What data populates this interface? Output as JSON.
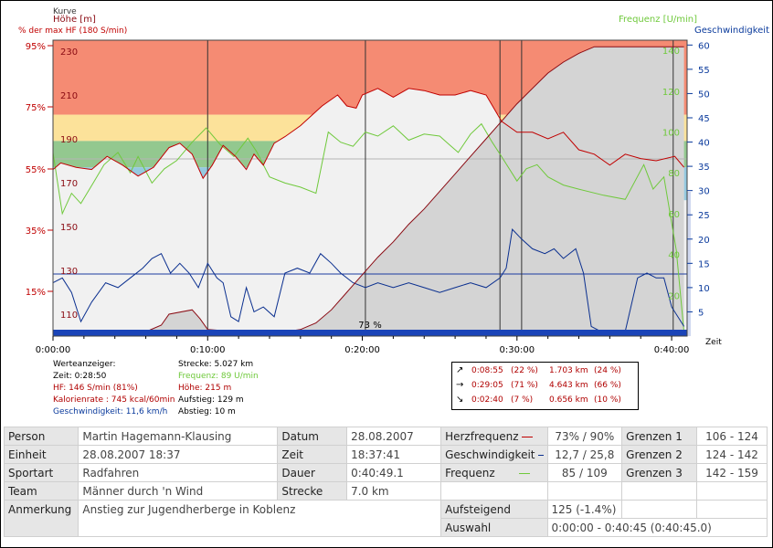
{
  "chart_data": {
    "type": "line",
    "left_axis_title_lines": [
      "Kurve",
      "Höhe [m]",
      "% der max HF (180 S/min)"
    ],
    "right_axis_title_1": "Frequenz [U/min]",
    "right_axis_title_2": "Geschwindigkeit [k",
    "x_axis_label": "Zeit",
    "x_ticks": [
      "0:00:00",
      "0:10:00",
      "0:20:00",
      "0:30:00",
      "0:40:00"
    ],
    "x_range_min": [
      0,
      41
    ],
    "hr_pct_ticks": [
      "95%",
      "75%",
      "55%",
      "35%",
      "15%"
    ],
    "altitude_ticks": [
      230,
      210,
      190,
      170,
      150,
      130,
      110
    ],
    "altitude_range_m": [
      100,
      235
    ],
    "cadence_ticks": [
      140,
      120,
      100,
      80,
      60,
      40,
      20
    ],
    "cadence_range": [
      0,
      145
    ],
    "speed_ticks": [
      60,
      55,
      50,
      45,
      40,
      35,
      30,
      25,
      20,
      15,
      10,
      5
    ],
    "speed_range_kmh": [
      0,
      61
    ],
    "hr_zones": [
      {
        "from": 201,
        "to": 235,
        "color": "#f58b73"
      },
      {
        "from": 189,
        "to": 201,
        "color": "#fce29a"
      },
      {
        "from": 177,
        "to": 189,
        "color": "#93c88f"
      },
      {
        "from": 162,
        "to": 177,
        "color": "#95c9e0"
      }
    ],
    "bottom_bar_label": "73 %",
    "lap_markers_min": [
      10,
      20.2,
      28.9,
      30.3,
      40.1
    ],
    "series": [
      {
        "name": "Höhe",
        "color": "#8a0a12",
        "points": [
          [
            0,
            102
          ],
          [
            2,
            102
          ],
          [
            6,
            102
          ],
          [
            7,
            105
          ],
          [
            7.5,
            110
          ],
          [
            9,
            112
          ],
          [
            9.5,
            108
          ],
          [
            10,
            103
          ],
          [
            12,
            102
          ],
          [
            15,
            102
          ],
          [
            16,
            103
          ],
          [
            17,
            106
          ],
          [
            18,
            112
          ],
          [
            19,
            120
          ],
          [
            20,
            128
          ],
          [
            21,
            136
          ],
          [
            22,
            143
          ],
          [
            23,
            151
          ],
          [
            24,
            158
          ],
          [
            25,
            166
          ],
          [
            26,
            174
          ],
          [
            27,
            182
          ],
          [
            28,
            190
          ],
          [
            29,
            198
          ],
          [
            30,
            206
          ],
          [
            31,
            213
          ],
          [
            32,
            220
          ],
          [
            33,
            225
          ],
          [
            34,
            229
          ],
          [
            35,
            232
          ],
          [
            36,
            232
          ],
          [
            37,
            232
          ],
          [
            38,
            232
          ],
          [
            39,
            232
          ],
          [
            40,
            232
          ],
          [
            40.8,
            232
          ]
        ]
      },
      {
        "name": "HF",
        "color": "#c00000",
        "points": [
          [
            0,
            176
          ],
          [
            0.5,
            179
          ],
          [
            1.5,
            177
          ],
          [
            2.5,
            176
          ],
          [
            3.5,
            182
          ],
          [
            4.5,
            178
          ],
          [
            5.5,
            173
          ],
          [
            6.5,
            177
          ],
          [
            7.5,
            186
          ],
          [
            8.2,
            188
          ],
          [
            9,
            183
          ],
          [
            9.7,
            172
          ],
          [
            10.3,
            178
          ],
          [
            11,
            187
          ],
          [
            11.8,
            182
          ],
          [
            12.5,
            176
          ],
          [
            13,
            183
          ],
          [
            13.6,
            178
          ],
          [
            14.3,
            188
          ],
          [
            15,
            191
          ],
          [
            16,
            196
          ],
          [
            17.4,
            205
          ],
          [
            18.4,
            210
          ],
          [
            19,
            205
          ],
          [
            19.6,
            204
          ],
          [
            20,
            210
          ],
          [
            21,
            213
          ],
          [
            22,
            209
          ],
          [
            23,
            213
          ],
          [
            24,
            212
          ],
          [
            25,
            210
          ],
          [
            26,
            210
          ],
          [
            27,
            212
          ],
          [
            28,
            210
          ],
          [
            29,
            198
          ],
          [
            30,
            193
          ],
          [
            31,
            193
          ],
          [
            32,
            190
          ],
          [
            33,
            193
          ],
          [
            34,
            185
          ],
          [
            35,
            183
          ],
          [
            36,
            178
          ],
          [
            37,
            183
          ],
          [
            38,
            181
          ],
          [
            39,
            180
          ],
          [
            40.2,
            182
          ],
          [
            40.8,
            177
          ]
        ]
      },
      {
        "name": "Frequenz",
        "color": "#6fc93b",
        "points": [
          [
            0,
            90
          ],
          [
            0.6,
            60
          ],
          [
            1.2,
            70
          ],
          [
            1.8,
            65
          ],
          [
            2.6,
            75
          ],
          [
            3.3,
            84
          ],
          [
            4.2,
            90
          ],
          [
            5,
            80
          ],
          [
            5.5,
            88
          ],
          [
            6.4,
            75
          ],
          [
            7.2,
            82
          ],
          [
            8,
            86
          ],
          [
            9,
            95
          ],
          [
            9.9,
            102
          ],
          [
            10.8,
            94
          ],
          [
            11.7,
            88
          ],
          [
            12.6,
            97
          ],
          [
            13.2,
            90
          ],
          [
            14,
            78
          ],
          [
            15,
            75
          ],
          [
            16,
            73
          ],
          [
            17,
            70
          ],
          [
            17.8,
            100
          ],
          [
            18.6,
            95
          ],
          [
            19.4,
            93
          ],
          [
            20.2,
            100
          ],
          [
            21,
            98
          ],
          [
            22,
            103
          ],
          [
            23,
            96
          ],
          [
            24,
            99
          ],
          [
            25,
            98
          ],
          [
            25.6,
            94
          ],
          [
            26.2,
            90
          ],
          [
            27,
            99
          ],
          [
            27.7,
            104
          ],
          [
            28.4,
            95
          ],
          [
            29,
            88
          ],
          [
            30,
            76
          ],
          [
            30.6,
            82
          ],
          [
            31.3,
            84
          ],
          [
            32,
            78
          ],
          [
            33,
            74
          ],
          [
            34,
            72
          ],
          [
            35.6,
            69
          ],
          [
            37,
            67
          ],
          [
            38.2,
            84
          ],
          [
            38.8,
            72
          ],
          [
            39.5,
            78
          ],
          [
            40.3,
            42
          ],
          [
            40.8,
            2
          ]
        ]
      },
      {
        "name": "Geschwindigkeit",
        "color": "#0a2f8f",
        "points": [
          [
            0,
            11
          ],
          [
            0.6,
            12
          ],
          [
            1.2,
            9
          ],
          [
            1.8,
            3
          ],
          [
            2.5,
            7
          ],
          [
            3.4,
            11
          ],
          [
            4.2,
            10
          ],
          [
            5,
            12
          ],
          [
            5.8,
            14
          ],
          [
            6.4,
            16
          ],
          [
            7,
            17
          ],
          [
            7.6,
            13
          ],
          [
            8.2,
            15
          ],
          [
            8.8,
            13
          ],
          [
            9.4,
            10
          ],
          [
            10,
            15
          ],
          [
            10.6,
            12
          ],
          [
            11,
            11
          ],
          [
            11.5,
            4
          ],
          [
            12,
            3
          ],
          [
            12.5,
            10
          ],
          [
            13,
            5
          ],
          [
            13.6,
            6
          ],
          [
            14.3,
            4
          ],
          [
            15,
            13
          ],
          [
            15.8,
            14
          ],
          [
            16.6,
            13
          ],
          [
            17.3,
            17
          ],
          [
            18,
            15
          ],
          [
            18.6,
            13
          ],
          [
            19.4,
            11
          ],
          [
            20.2,
            10
          ],
          [
            21,
            11
          ],
          [
            22,
            10
          ],
          [
            23,
            11
          ],
          [
            24,
            10
          ],
          [
            25,
            9
          ],
          [
            26,
            10
          ],
          [
            27,
            11
          ],
          [
            28,
            10
          ],
          [
            28.9,
            12
          ],
          [
            29.3,
            14
          ],
          [
            29.7,
            22
          ],
          [
            30.3,
            20
          ],
          [
            31,
            18
          ],
          [
            31.8,
            17
          ],
          [
            32.4,
            18
          ],
          [
            33,
            16
          ],
          [
            33.8,
            18
          ],
          [
            34.3,
            13
          ],
          [
            34.8,
            2
          ],
          [
            35.4,
            1
          ],
          [
            36,
            1
          ],
          [
            37,
            1
          ],
          [
            37.8,
            12
          ],
          [
            38.4,
            13
          ],
          [
            39,
            12
          ],
          [
            39.5,
            12
          ],
          [
            40,
            6
          ],
          [
            40.8,
            2
          ]
        ]
      }
    ]
  },
  "values_panel": {
    "col1": [
      {
        "text": "Werteanzeiger:",
        "color": "black"
      },
      {
        "text": "Zeit: 0:28:50",
        "color": "black"
      },
      {
        "text": "HF: 146 S/min (81%)",
        "color": "red"
      },
      {
        "text": "Kalorienrate : 745 kcal/60min",
        "color": "red"
      },
      {
        "text": "Geschwindigkeit: 11,6 km/h",
        "color": "blue"
      }
    ],
    "col2": [
      {
        "text": "Strecke: 5.027 km",
        "color": "black"
      },
      {
        "text": "Frequenz: 89 U/min",
        "color": "green"
      },
      {
        "text": "Höhe: 215 m",
        "color": "red"
      },
      {
        "text": "Aufstieg: 129 m",
        "color": "black"
      },
      {
        "text": "Abstieg: 10 m",
        "color": "black"
      }
    ]
  },
  "laps": [
    {
      "arrow": "↗",
      "time": "0:08:55",
      "pct": "(22 %)",
      "dist": "1.703 km",
      "dpct": "(24 %)"
    },
    {
      "arrow": "→",
      "time": "0:29:05",
      "pct": "(71 %)",
      "dist": "4.643 km",
      "dpct": "(66 %)"
    },
    {
      "arrow": "↘",
      "time": "0:02:40",
      "pct": "(7 %)",
      "dist": "0.656 km",
      "dpct": "(10 %)"
    }
  ],
  "info": {
    "person_label": "Person",
    "person": "Martin Hagemann-Klausing",
    "datum_label": "Datum",
    "datum": "28.08.2007",
    "hf_label": "Herzfrequenz",
    "hf": "73% / 90%",
    "g1_label": "Grenzen 1",
    "g1": "106 - 124",
    "einheit_label": "Einheit",
    "einheit": "28.08.2007 18:37",
    "zeit_label": "Zeit",
    "zeit": "18:37:41",
    "speed_label": "Geschwindigkeit",
    "speed": "12,7 / 25,8",
    "g2_label": "Grenzen 2",
    "g2": "124 - 142",
    "sport_label": "Sportart",
    "sport": "Radfahren",
    "dauer_label": "Dauer",
    "dauer": "0:40:49.1",
    "freq_label": "Frequenz",
    "freq": "85 / 109",
    "g3_label": "Grenzen 3",
    "g3": "142 - 159",
    "team_label": "Team",
    "team": "Männer durch 'n Wind",
    "strecke_label": "Strecke",
    "strecke": "7.0 km",
    "anm_label": "Anmerkung",
    "anm": "Anstieg zur Jugendherberge in Koblenz",
    "auf_label": "Aufsteigend",
    "auf": "125 (-1.4%)",
    "ausw_label": "Auswahl",
    "ausw": "0:00:00 - 0:40:45 (0:40:45.0)"
  }
}
